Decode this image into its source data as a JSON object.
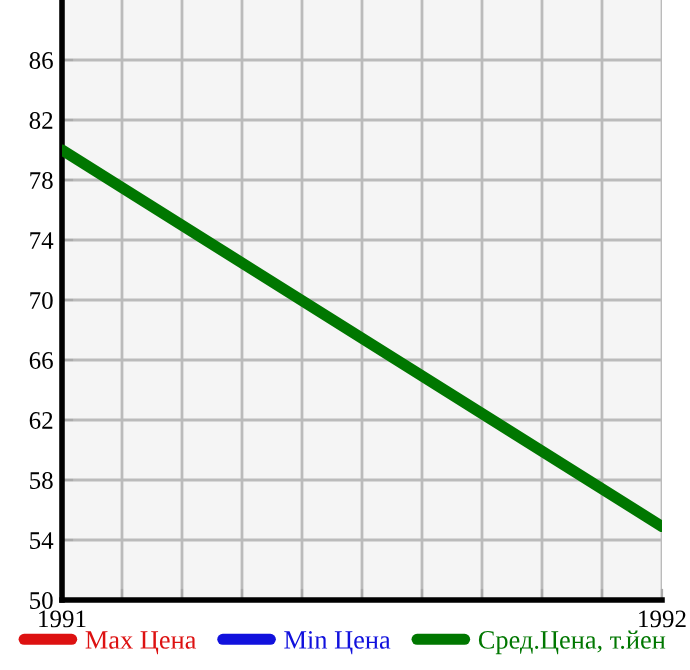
{
  "chart_data": {
    "type": "line",
    "x": [
      1991,
      1992
    ],
    "series": [
      {
        "name": "Max Цена",
        "color": "#dd1111",
        "values": [
          null,
          null
        ]
      },
      {
        "name": "Min Цена",
        "color": "#1111dd",
        "values": [
          null,
          null
        ]
      },
      {
        "name": "Сред.Цена, т.йен",
        "color": "#007700",
        "values": [
          80,
          54.9
        ]
      }
    ],
    "xlim": [
      1991,
      1992
    ],
    "xticks": [
      1991,
      {
        "value": 1991.1,
        "label": null
      },
      {
        "value": 1991.2,
        "label": null
      },
      {
        "value": 1991.3,
        "label": null
      },
      {
        "value": 1991.4,
        "label": null
      },
      {
        "value": 1991.5,
        "label": null
      },
      {
        "value": 1991.6,
        "label": null
      },
      {
        "value": 1991.7,
        "label": null
      },
      {
        "value": 1991.8,
        "label": null
      },
      {
        "value": 1991.9,
        "label": null
      },
      1992
    ],
    "ylim": [
      50,
      90
    ],
    "yticks": [
      50,
      54,
      58,
      62,
      66,
      70,
      74,
      78,
      82,
      86
    ],
    "grid": true,
    "legend": "bottom",
    "marker": "none",
    "line_style": "solid"
  }
}
